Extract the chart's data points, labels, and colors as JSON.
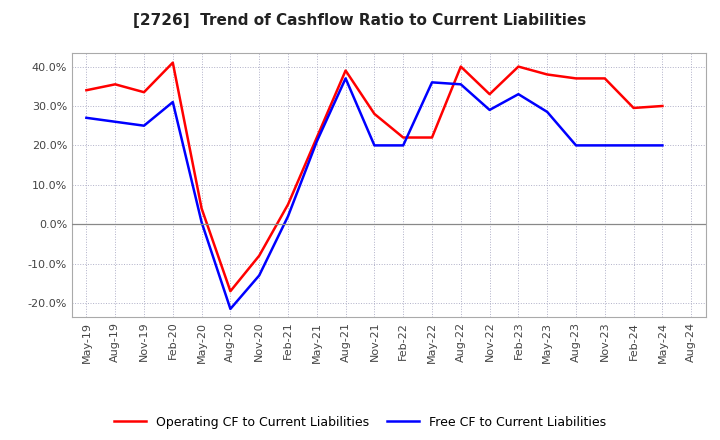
{
  "title": "[2726]  Trend of Cashflow Ratio to Current Liabilities",
  "x_labels": [
    "May-19",
    "Aug-19",
    "Nov-19",
    "Feb-20",
    "May-20",
    "Aug-20",
    "Nov-20",
    "Feb-21",
    "May-21",
    "Aug-21",
    "Nov-21",
    "Feb-22",
    "May-22",
    "Aug-22",
    "Nov-22",
    "Feb-23",
    "May-23",
    "Aug-23",
    "Nov-23",
    "Feb-24",
    "May-24",
    "Aug-24"
  ],
  "operating_cf": [
    0.34,
    0.355,
    0.335,
    0.41,
    0.04,
    -0.17,
    -0.08,
    0.05,
    0.22,
    0.39,
    0.28,
    0.22,
    0.22,
    0.4,
    0.33,
    0.4,
    0.38,
    0.37,
    0.37,
    0.295,
    0.3,
    null
  ],
  "free_cf": [
    0.27,
    0.26,
    0.25,
    0.31,
    0.005,
    -0.215,
    -0.13,
    0.02,
    0.21,
    0.37,
    0.2,
    0.2,
    0.36,
    0.355,
    0.29,
    0.33,
    0.285,
    0.2,
    0.2,
    0.2,
    0.2,
    null
  ],
  "ylim": [
    -0.235,
    0.435
  ],
  "yticks": [
    -0.2,
    -0.1,
    0.0,
    0.1,
    0.2,
    0.3,
    0.4
  ],
  "operating_color": "#ff0000",
  "free_color": "#0000ff",
  "background_color": "#ffffff",
  "legend_op": "Operating CF to Current Liabilities",
  "legend_free": "Free CF to Current Liabilities"
}
